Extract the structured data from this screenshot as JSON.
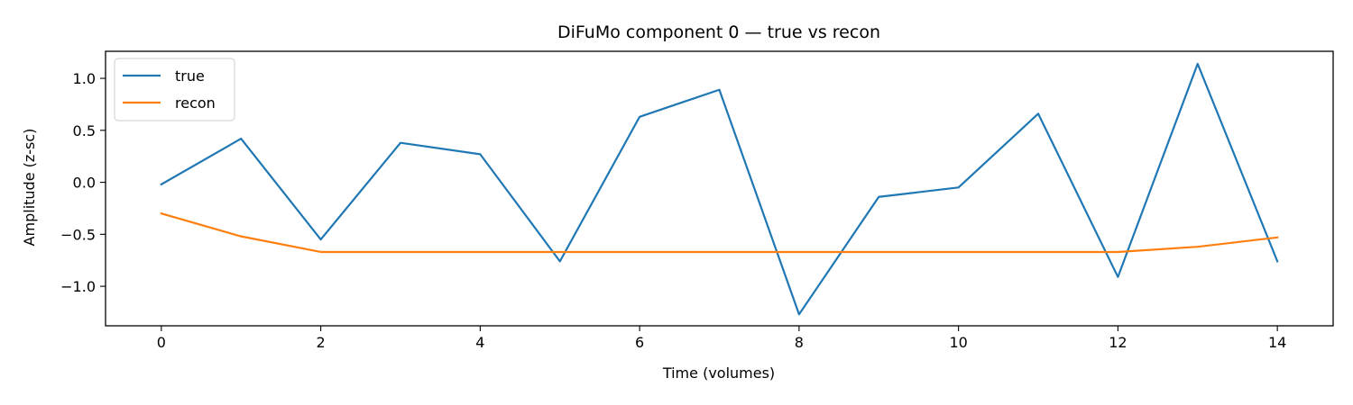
{
  "chart_data": {
    "type": "line",
    "title": "DiFuMo component 0 — true vs recon",
    "xlabel": "Time (volumes)",
    "ylabel": "Amplitude (z-sc)",
    "xlim": [
      -0.7,
      14.7
    ],
    "ylim": [
      -1.38,
      1.26
    ],
    "xticks": [
      0,
      2,
      4,
      6,
      8,
      10,
      12,
      14
    ],
    "xtick_labels": [
      "0",
      "2",
      "4",
      "6",
      "8",
      "10",
      "12",
      "14"
    ],
    "yticks": [
      1.0,
      0.5,
      0.0,
      -0.5,
      -1.0
    ],
    "ytick_labels": [
      "1.0",
      "0.5",
      "0.0",
      "−0.5",
      "−1.0"
    ],
    "grid": false,
    "legend_position": "top-left",
    "x": [
      0,
      1,
      2,
      3,
      4,
      5,
      6,
      7,
      8,
      9,
      10,
      11,
      12,
      13,
      14
    ],
    "series": [
      {
        "name": "true",
        "color": "#1f77b4",
        "values": [
          -0.02,
          0.42,
          -0.55,
          0.38,
          0.27,
          -0.76,
          0.63,
          0.89,
          -1.27,
          -0.14,
          -0.05,
          0.66,
          -0.91,
          1.14,
          -0.76
        ]
      },
      {
        "name": "recon",
        "color": "#ff7f0e",
        "values": [
          -0.3,
          -0.52,
          -0.67,
          -0.67,
          -0.67,
          -0.67,
          -0.67,
          -0.67,
          -0.67,
          -0.67,
          -0.67,
          -0.67,
          -0.67,
          -0.62,
          -0.53
        ]
      }
    ]
  }
}
